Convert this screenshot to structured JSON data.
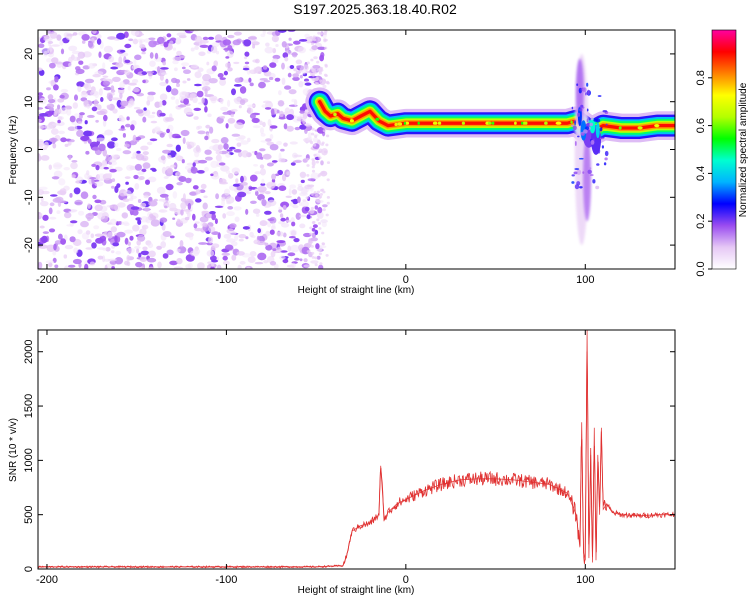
{
  "figure": {
    "title": "S197.2025.363.18.40.R02"
  },
  "chart_data": [
    {
      "type": "heatmap",
      "title": "",
      "xlabel": "Height of straight line (km)",
      "ylabel": "Frequency (Hz)",
      "xlim": [
        -205,
        150
      ],
      "ylim": [
        -25,
        25
      ],
      "xticks": [
        -200,
        -100,
        0,
        100
      ],
      "yticks": [
        -20,
        -10,
        0,
        10,
        20
      ],
      "grid": false,
      "colorbar": {
        "label": "Normalized spectral amplitude",
        "range": [
          0.0,
          1.0
        ],
        "ticks": [
          "0.0",
          "0.2",
          "0.4",
          "0.6",
          "0.8"
        ],
        "tick_values": [
          0.0,
          0.2,
          0.4,
          0.6,
          0.8
        ],
        "colors": [
          "#ffffff",
          "#e6c8f5",
          "#9a4cf0",
          "#0000ff",
          "#00b4ff",
          "#00ffd0",
          "#00ff00",
          "#b4ff00",
          "#ffff00",
          "#ff8000",
          "#ff0000",
          "#ff00a0"
        ]
      },
      "noise_region": {
        "x_range": [
          -205,
          -45
        ],
        "y_range": [
          -25,
          25
        ],
        "description": "scattered low amplitude"
      },
      "ridge": {
        "x": [
          -48,
          -45,
          -42,
          -38,
          -35,
          -30,
          -25,
          -20,
          -15,
          -10,
          0,
          20,
          40,
          60,
          80,
          90,
          95,
          100,
          105,
          110,
          120,
          130,
          140,
          150
        ],
        "y": [
          10,
          8,
          7,
          7.5,
          6.5,
          6,
          7,
          8,
          6,
          5,
          5.5,
          5.5,
          5.5,
          5.5,
          5.5,
          5.5,
          6,
          4.5,
          4,
          5,
          4.5,
          4.5,
          5,
          5
        ]
      },
      "disturbance": {
        "x_range": [
          92,
          112
        ],
        "y_range": [
          -20,
          19
        ]
      }
    },
    {
      "type": "line",
      "title": "",
      "xlabel": "Height of straight line (km)",
      "ylabel": "SNR (10 * v/v)",
      "xlim": [
        -205,
        150
      ],
      "ylim": [
        0,
        2200
      ],
      "xticks": [
        -200,
        -100,
        0,
        100
      ],
      "yticks": [
        0,
        500,
        1000,
        1500,
        2000
      ],
      "grid": false,
      "series": [
        {
          "color": "#e03030",
          "x": [
            -205,
            -150,
            -100,
            -50,
            -35,
            -33,
            -30,
            -25,
            -20,
            -15,
            -14,
            -12,
            -10,
            -5,
            0,
            10,
            20,
            30,
            40,
            50,
            60,
            70,
            80,
            90,
            95,
            97,
            98,
            99,
            100,
            101,
            102,
            103,
            104,
            105,
            106,
            107,
            108,
            109,
            110,
            112,
            115,
            120,
            130,
            140,
            150
          ],
          "y": [
            20,
            20,
            20,
            20,
            30,
            120,
            350,
            400,
            420,
            500,
            950,
            450,
            520,
            600,
            640,
            720,
            780,
            820,
            830,
            830,
            820,
            800,
            780,
            700,
            500,
            200,
            1350,
            150,
            80,
            2200,
            100,
            1050,
            60,
            1300,
            80,
            1050,
            500,
            1300,
            550,
            600,
            520,
            500,
            490,
            500,
            500
          ]
        }
      ]
    }
  ]
}
